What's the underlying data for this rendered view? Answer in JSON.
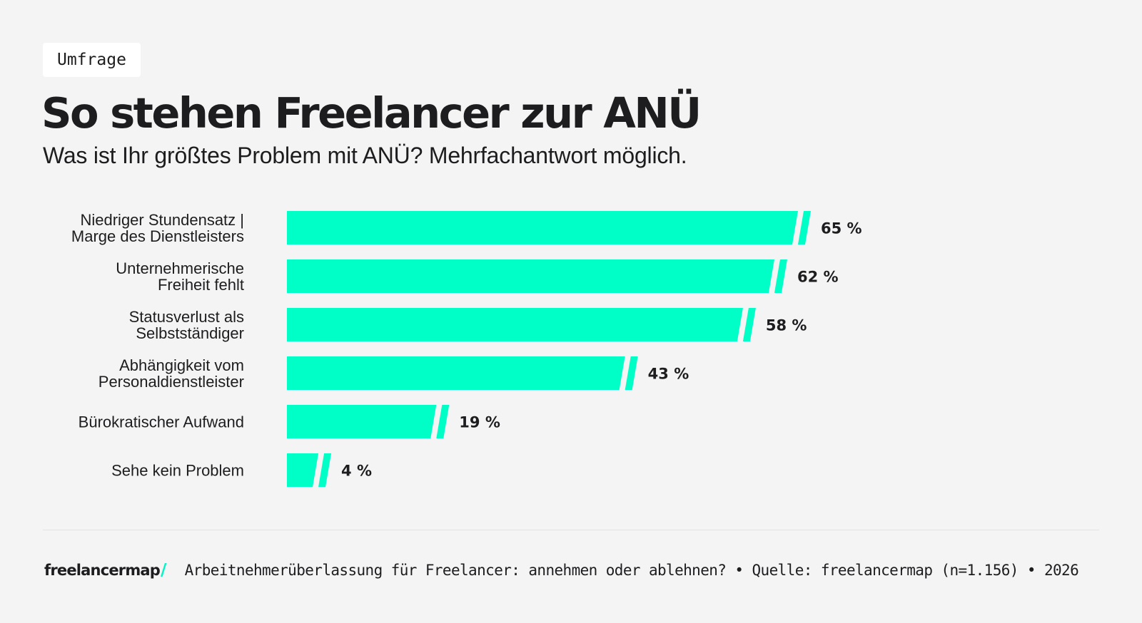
{
  "tag": "Umfrage",
  "title": "So stehen Freelancer zur ANÜ",
  "subtitle": "Was ist Ihr größtes Problem mit ANÜ? Mehrfachantwort möglich.",
  "colors": {
    "bar": "#00ffc6",
    "background": "#f4f4f4",
    "text": "#1d1d1f"
  },
  "chart_data": {
    "type": "bar",
    "orientation": "horizontal",
    "categories": [
      [
        "Niedriger Stundensatz |",
        "Marge des Dienstleisters"
      ],
      [
        "Unternehmerische",
        "Freiheit fehlt"
      ],
      [
        "Statusverlust als",
        "Selbstständiger"
      ],
      [
        "Abhängigkeit vom",
        "Personaldienstleister"
      ],
      [
        "Bürokratischer Aufwand"
      ],
      [
        "Sehe kein Problem"
      ]
    ],
    "values": [
      65,
      62,
      58,
      43,
      19,
      4
    ],
    "value_labels": [
      "65 %",
      "62 %",
      "58 %",
      "43 %",
      "19 %",
      "4 %"
    ],
    "unit": "%",
    "xlim": [
      0,
      100
    ],
    "grid": false,
    "legend": "none"
  },
  "footer": {
    "logo_text": "freelancermap",
    "logo_mark": "/",
    "source": "Arbeitnehmerüberlassung für Freelancer: annehmen oder ablehnen? • Quelle: freelancermap (n=1.156) • 2026"
  }
}
